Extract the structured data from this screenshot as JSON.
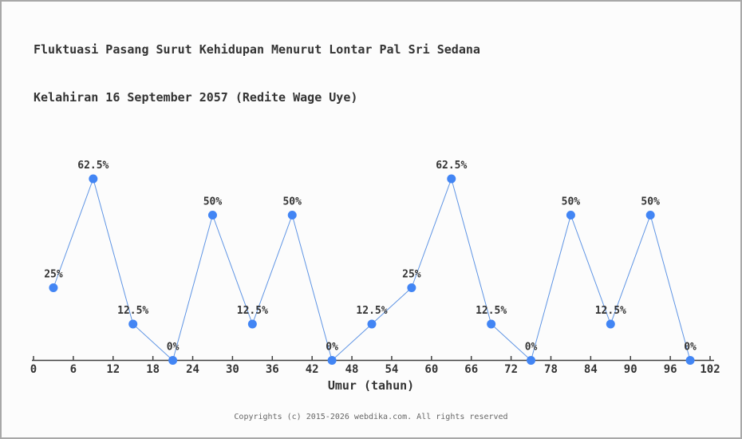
{
  "chart_data": {
    "type": "line",
    "title": "Fluktuasi Pasang Surut Kehidupan Menurut Lontar Pal Sri Sedana",
    "subtitle": "Kelahiran 16 September 2057 (Redite Wage Uye)",
    "x": [
      3,
      9,
      15,
      21,
      27,
      33,
      39,
      45,
      51,
      57,
      63,
      69,
      75,
      81,
      87,
      93,
      99
    ],
    "values": [
      25,
      62.5,
      12.5,
      0,
      50,
      12.5,
      50,
      0,
      12.5,
      25,
      62.5,
      12.5,
      0,
      50,
      12.5,
      50,
      0
    ],
    "point_labels": [
      "25%",
      "62.5%",
      "12.5%",
      "0%",
      "50%",
      "12.5%",
      "50%",
      "0%",
      "12.5%",
      "25%",
      "62.5%",
      "12.5%",
      "0%",
      "50%",
      "12.5%",
      "50%",
      "0%"
    ],
    "xlabel": "Umur (tahun)",
    "ylabel": "",
    "x_ticks": [
      0,
      6,
      12,
      18,
      24,
      30,
      36,
      42,
      48,
      54,
      60,
      66,
      72,
      78,
      84,
      90,
      96,
      102
    ],
    "xlim": [
      0,
      102
    ],
    "ylim": [
      0,
      100
    ],
    "grid": false,
    "legend": false,
    "colors": {
      "line": "#5e94e4",
      "marker": "#4285f4",
      "axis": "#3f3f3f",
      "text": "#333333"
    }
  },
  "footer": {
    "text": "Copyrights (c) 2015-2026 webdika.com. All rights reserved"
  }
}
